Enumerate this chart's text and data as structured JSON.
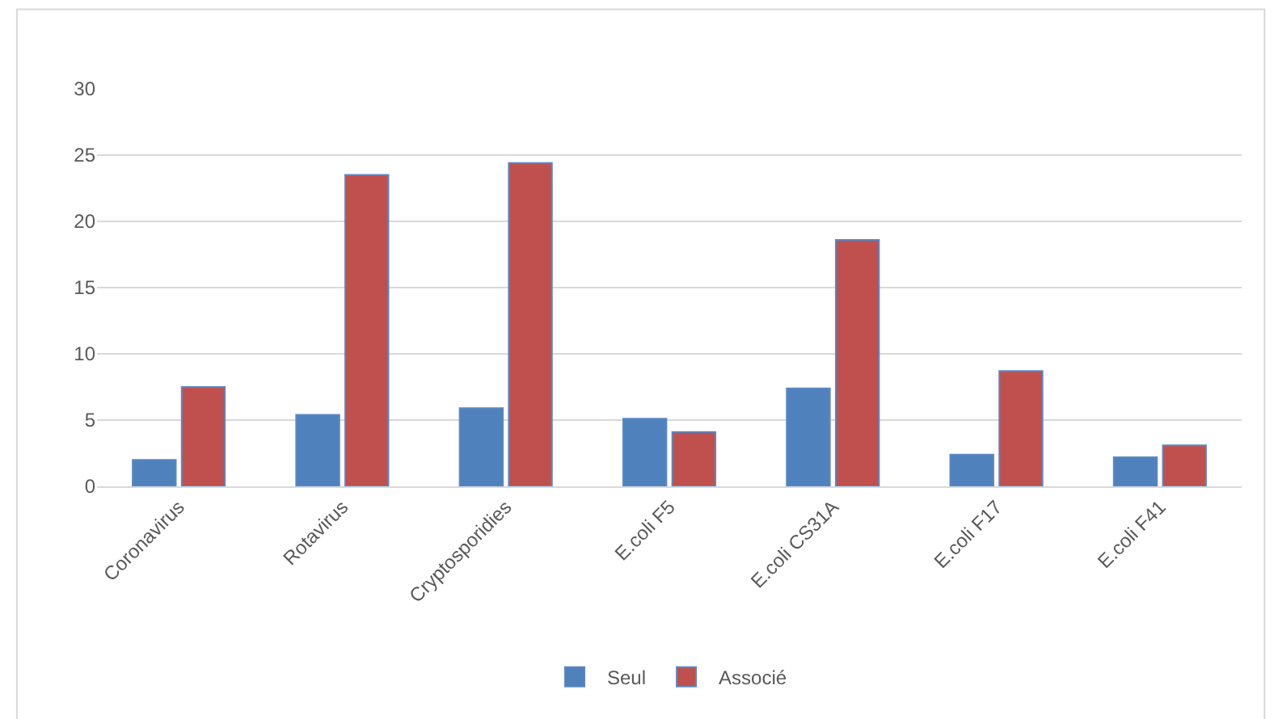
{
  "chart_data": {
    "type": "bar",
    "categories": [
      "Coronavirus",
      "Rotavirus",
      "Cryptosporidies",
      "E.coli F5",
      "E.coli CS31A",
      "E.coli F17",
      "E.coli F41"
    ],
    "series": [
      {
        "name": "Seul",
        "color": "#4f81bd",
        "values": [
          2.0,
          5.4,
          5.9,
          5.1,
          7.4,
          2.4,
          2.2
        ]
      },
      {
        "name": "Associé",
        "color": "#c0504d",
        "values": [
          7.5,
          23.5,
          24.4,
          4.1,
          18.6,
          8.7,
          3.1
        ]
      }
    ],
    "ylim": [
      0,
      30
    ],
    "yticks": [
      0,
      5,
      10,
      15,
      20,
      25,
      30
    ],
    "grid": "y",
    "legend": "bottom"
  }
}
